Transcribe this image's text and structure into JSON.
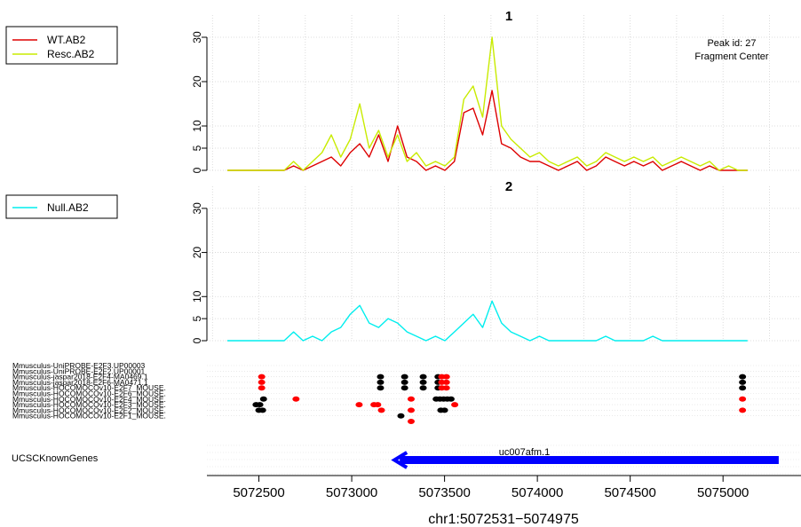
{
  "chart_data": [
    {
      "type": "line",
      "title": "1",
      "annotation": [
        "Peak id: 27",
        "Fragment Center"
      ],
      "ylim": [
        0,
        35
      ],
      "yticks": [
        0,
        5,
        10,
        20,
        30
      ],
      "grid": true,
      "legend_position": "top-left",
      "x": [
        5072330,
        5072381,
        5072432,
        5072483,
        5072534,
        5072585,
        5072636,
        5072687,
        5072738,
        5072789,
        5072840,
        5072890,
        5072941,
        5072992,
        5073043,
        5073094,
        5073145,
        5073196,
        5073247,
        5073298,
        5073349,
        5073400,
        5073451,
        5073502,
        5073553,
        5073604,
        5073654,
        5073705,
        5073756,
        5073807,
        5073858,
        5073909,
        5073960,
        5074011,
        5074062,
        5074113,
        5074164,
        5074215,
        5074266,
        5074317,
        5074368,
        5074418,
        5074469,
        5074520,
        5074571,
        5074622,
        5074673,
        5074724,
        5074775,
        5074826,
        5074877,
        5074928,
        5074979,
        5075030,
        5075081,
        5075132
      ],
      "series": [
        {
          "name": "WT.AB2",
          "color": "#DD0000",
          "values": [
            0,
            0,
            0,
            0,
            0,
            0,
            0,
            1,
            0,
            1,
            2,
            3,
            1,
            4,
            6,
            3,
            8,
            2,
            10,
            3,
            2,
            0,
            1,
            0,
            2,
            13,
            14,
            8,
            18,
            6,
            5,
            3,
            2,
            2,
            1,
            0,
            1,
            2,
            0,
            1,
            3,
            2,
            1,
            2,
            1,
            2,
            0,
            1,
            2,
            1,
            0,
            1,
            0,
            0,
            0,
            0
          ]
        },
        {
          "name": "Resc.AB2",
          "color": "#C8EB00",
          "values": [
            0,
            0,
            0,
            0,
            0,
            0,
            0,
            2,
            0,
            2,
            4,
            8,
            3,
            7,
            15,
            5,
            9,
            3,
            8,
            2,
            4,
            1,
            2,
            1,
            3,
            16,
            19,
            12,
            30,
            10,
            7,
            5,
            3,
            4,
            2,
            1,
            2,
            3,
            1,
            2,
            4,
            3,
            2,
            3,
            2,
            3,
            1,
            2,
            3,
            2,
            1,
            2,
            0,
            1,
            0,
            0
          ]
        }
      ]
    },
    {
      "type": "line",
      "title": "2",
      "ylim": [
        0,
        35
      ],
      "yticks": [
        0,
        5,
        10,
        20,
        30
      ],
      "grid": true,
      "legend_position": "top-left",
      "x": [
        5072330,
        5072381,
        5072432,
        5072483,
        5072534,
        5072585,
        5072636,
        5072687,
        5072738,
        5072789,
        5072840,
        5072890,
        5072941,
        5072992,
        5073043,
        5073094,
        5073145,
        5073196,
        5073247,
        5073298,
        5073349,
        5073400,
        5073451,
        5073502,
        5073553,
        5073604,
        5073654,
        5073705,
        5073756,
        5073807,
        5073858,
        5073909,
        5073960,
        5074011,
        5074062,
        5074113,
        5074164,
        5074215,
        5074266,
        5074317,
        5074368,
        5074418,
        5074469,
        5074520,
        5074571,
        5074622,
        5074673,
        5074724,
        5074775,
        5074826,
        5074877,
        5074928,
        5074979,
        5075030,
        5075081,
        5075132
      ],
      "series": [
        {
          "name": "Null.AB2",
          "color": "#00EEEE",
          "values": [
            0,
            0,
            0,
            0,
            0,
            0,
            0,
            2,
            0,
            1,
            0,
            2,
            3,
            6,
            8,
            4,
            3,
            5,
            4,
            2,
            1,
            0,
            1,
            0,
            2,
            4,
            6,
            3,
            9,
            4,
            2,
            1,
            0,
            1,
            0,
            0,
            0,
            0,
            0,
            0,
            1,
            0,
            0,
            0,
            0,
            1,
            0,
            0,
            0,
            0,
            0,
            0,
            0,
            0,
            0,
            0
          ]
        }
      ]
    },
    {
      "type": "scatter",
      "tracks": [
        "Mmusculus-UniPROBE-E2F3.UP00003",
        "Mmusculus-UniPROBE-E2F2.UP00001",
        "Mmusculus-jaspar2018-E2F4-MA0469.1",
        "Mmusculus-jaspar2018-E2F6-MA0471.1",
        "Mmusculus-HOCOMOCOv10-E2F7_MOUSE.",
        "Mmusculus-HOCOMOCOv10-E2F6_MOUSE.",
        "Mmusculus-HOCOMOCOv10-E2F4_MOUSE.",
        "Mmusculus-HOCOMOCOv10-E2F3_MOUSE.",
        "Mmusculus-HOCOMOCOv10-E2F2_MOUSE.",
        "Mmusculus-HOCOMOCOv10-E2F1_MOUSE."
      ],
      "points": [
        {
          "x": 5072515,
          "track": 2,
          "color": "#FF0000"
        },
        {
          "x": 5072515,
          "track": 3,
          "color": "#FF0000"
        },
        {
          "x": 5072515,
          "track": 4,
          "color": "#FF0000"
        },
        {
          "x": 5072505,
          "track": 7,
          "color": "#000000"
        },
        {
          "x": 5072525,
          "track": 6,
          "color": "#000000"
        },
        {
          "x": 5072485,
          "track": 7,
          "color": "#000000"
        },
        {
          "x": 5072500,
          "track": 8,
          "color": "#000000"
        },
        {
          "x": 5072520,
          "track": 8,
          "color": "#000000"
        },
        {
          "x": 5072700,
          "track": 6,
          "color": "#FF0000"
        },
        {
          "x": 5073155,
          "track": 2,
          "color": "#000000"
        },
        {
          "x": 5073155,
          "track": 3,
          "color": "#000000"
        },
        {
          "x": 5073155,
          "track": 4,
          "color": "#000000"
        },
        {
          "x": 5073040,
          "track": 7,
          "color": "#FF0000"
        },
        {
          "x": 5073120,
          "track": 7,
          "color": "#FF0000"
        },
        {
          "x": 5073140,
          "track": 7,
          "color": "#FF0000"
        },
        {
          "x": 5073160,
          "track": 8,
          "color": "#FF0000"
        },
        {
          "x": 5073265,
          "track": 9,
          "color": "#000000"
        },
        {
          "x": 5073320,
          "track": 6,
          "color": "#FF0000"
        },
        {
          "x": 5073320,
          "track": 8,
          "color": "#FF0000"
        },
        {
          "x": 5073320,
          "track": 10,
          "color": "#FF0000"
        },
        {
          "x": 5073285,
          "track": 2,
          "color": "#000000"
        },
        {
          "x": 5073285,
          "track": 3,
          "color": "#000000"
        },
        {
          "x": 5073285,
          "track": 4,
          "color": "#000000"
        },
        {
          "x": 5073385,
          "track": 2,
          "color": "#000000"
        },
        {
          "x": 5073385,
          "track": 3,
          "color": "#000000"
        },
        {
          "x": 5073385,
          "track": 4,
          "color": "#000000"
        },
        {
          "x": 5073465,
          "track": 2,
          "color": "#000000"
        },
        {
          "x": 5073465,
          "track": 3,
          "color": "#000000"
        },
        {
          "x": 5073465,
          "track": 4,
          "color": "#000000"
        },
        {
          "x": 5073485,
          "track": 2,
          "color": "#FF0000"
        },
        {
          "x": 5073485,
          "track": 3,
          "color": "#FF0000"
        },
        {
          "x": 5073485,
          "track": 4,
          "color": "#FF0000"
        },
        {
          "x": 5073510,
          "track": 2,
          "color": "#FF0000"
        },
        {
          "x": 5073510,
          "track": 3,
          "color": "#FF0000"
        },
        {
          "x": 5073510,
          "track": 4,
          "color": "#FF0000"
        },
        {
          "x": 5073455,
          "track": 6,
          "color": "#000000"
        },
        {
          "x": 5073475,
          "track": 6,
          "color": "#000000"
        },
        {
          "x": 5073495,
          "track": 6,
          "color": "#000000"
        },
        {
          "x": 5073515,
          "track": 6,
          "color": "#000000"
        },
        {
          "x": 5073535,
          "track": 6,
          "color": "#000000"
        },
        {
          "x": 5073555,
          "track": 7,
          "color": "#FF0000"
        },
        {
          "x": 5073480,
          "track": 8,
          "color": "#000000"
        },
        {
          "x": 5073500,
          "track": 8,
          "color": "#000000"
        },
        {
          "x": 5075105,
          "track": 2,
          "color": "#000000"
        },
        {
          "x": 5075105,
          "track": 3,
          "color": "#000000"
        },
        {
          "x": 5075105,
          "track": 4,
          "color": "#000000"
        },
        {
          "x": 5075105,
          "track": 6,
          "color": "#FF0000"
        },
        {
          "x": 5075105,
          "track": 8,
          "color": "#FF0000"
        }
      ]
    },
    {
      "type": "gene_track",
      "track_label": "UCSCKnownGenes",
      "gene": {
        "name": "uc007afm.1",
        "start": 5073230,
        "end": 5075300,
        "strand": "-",
        "color": "#0000FF"
      }
    }
  ],
  "x_axis": {
    "xlim": [
      5072220,
      5075420
    ],
    "ticks": [
      5072500,
      5073000,
      5073500,
      5074000,
      5074500,
      5075000
    ],
    "tick_labels": [
      "5072500",
      "5073000",
      "5073500",
      "5074000",
      "5074500",
      "5075000"
    ],
    "xlabel": "chr1:5072531−5074975"
  }
}
